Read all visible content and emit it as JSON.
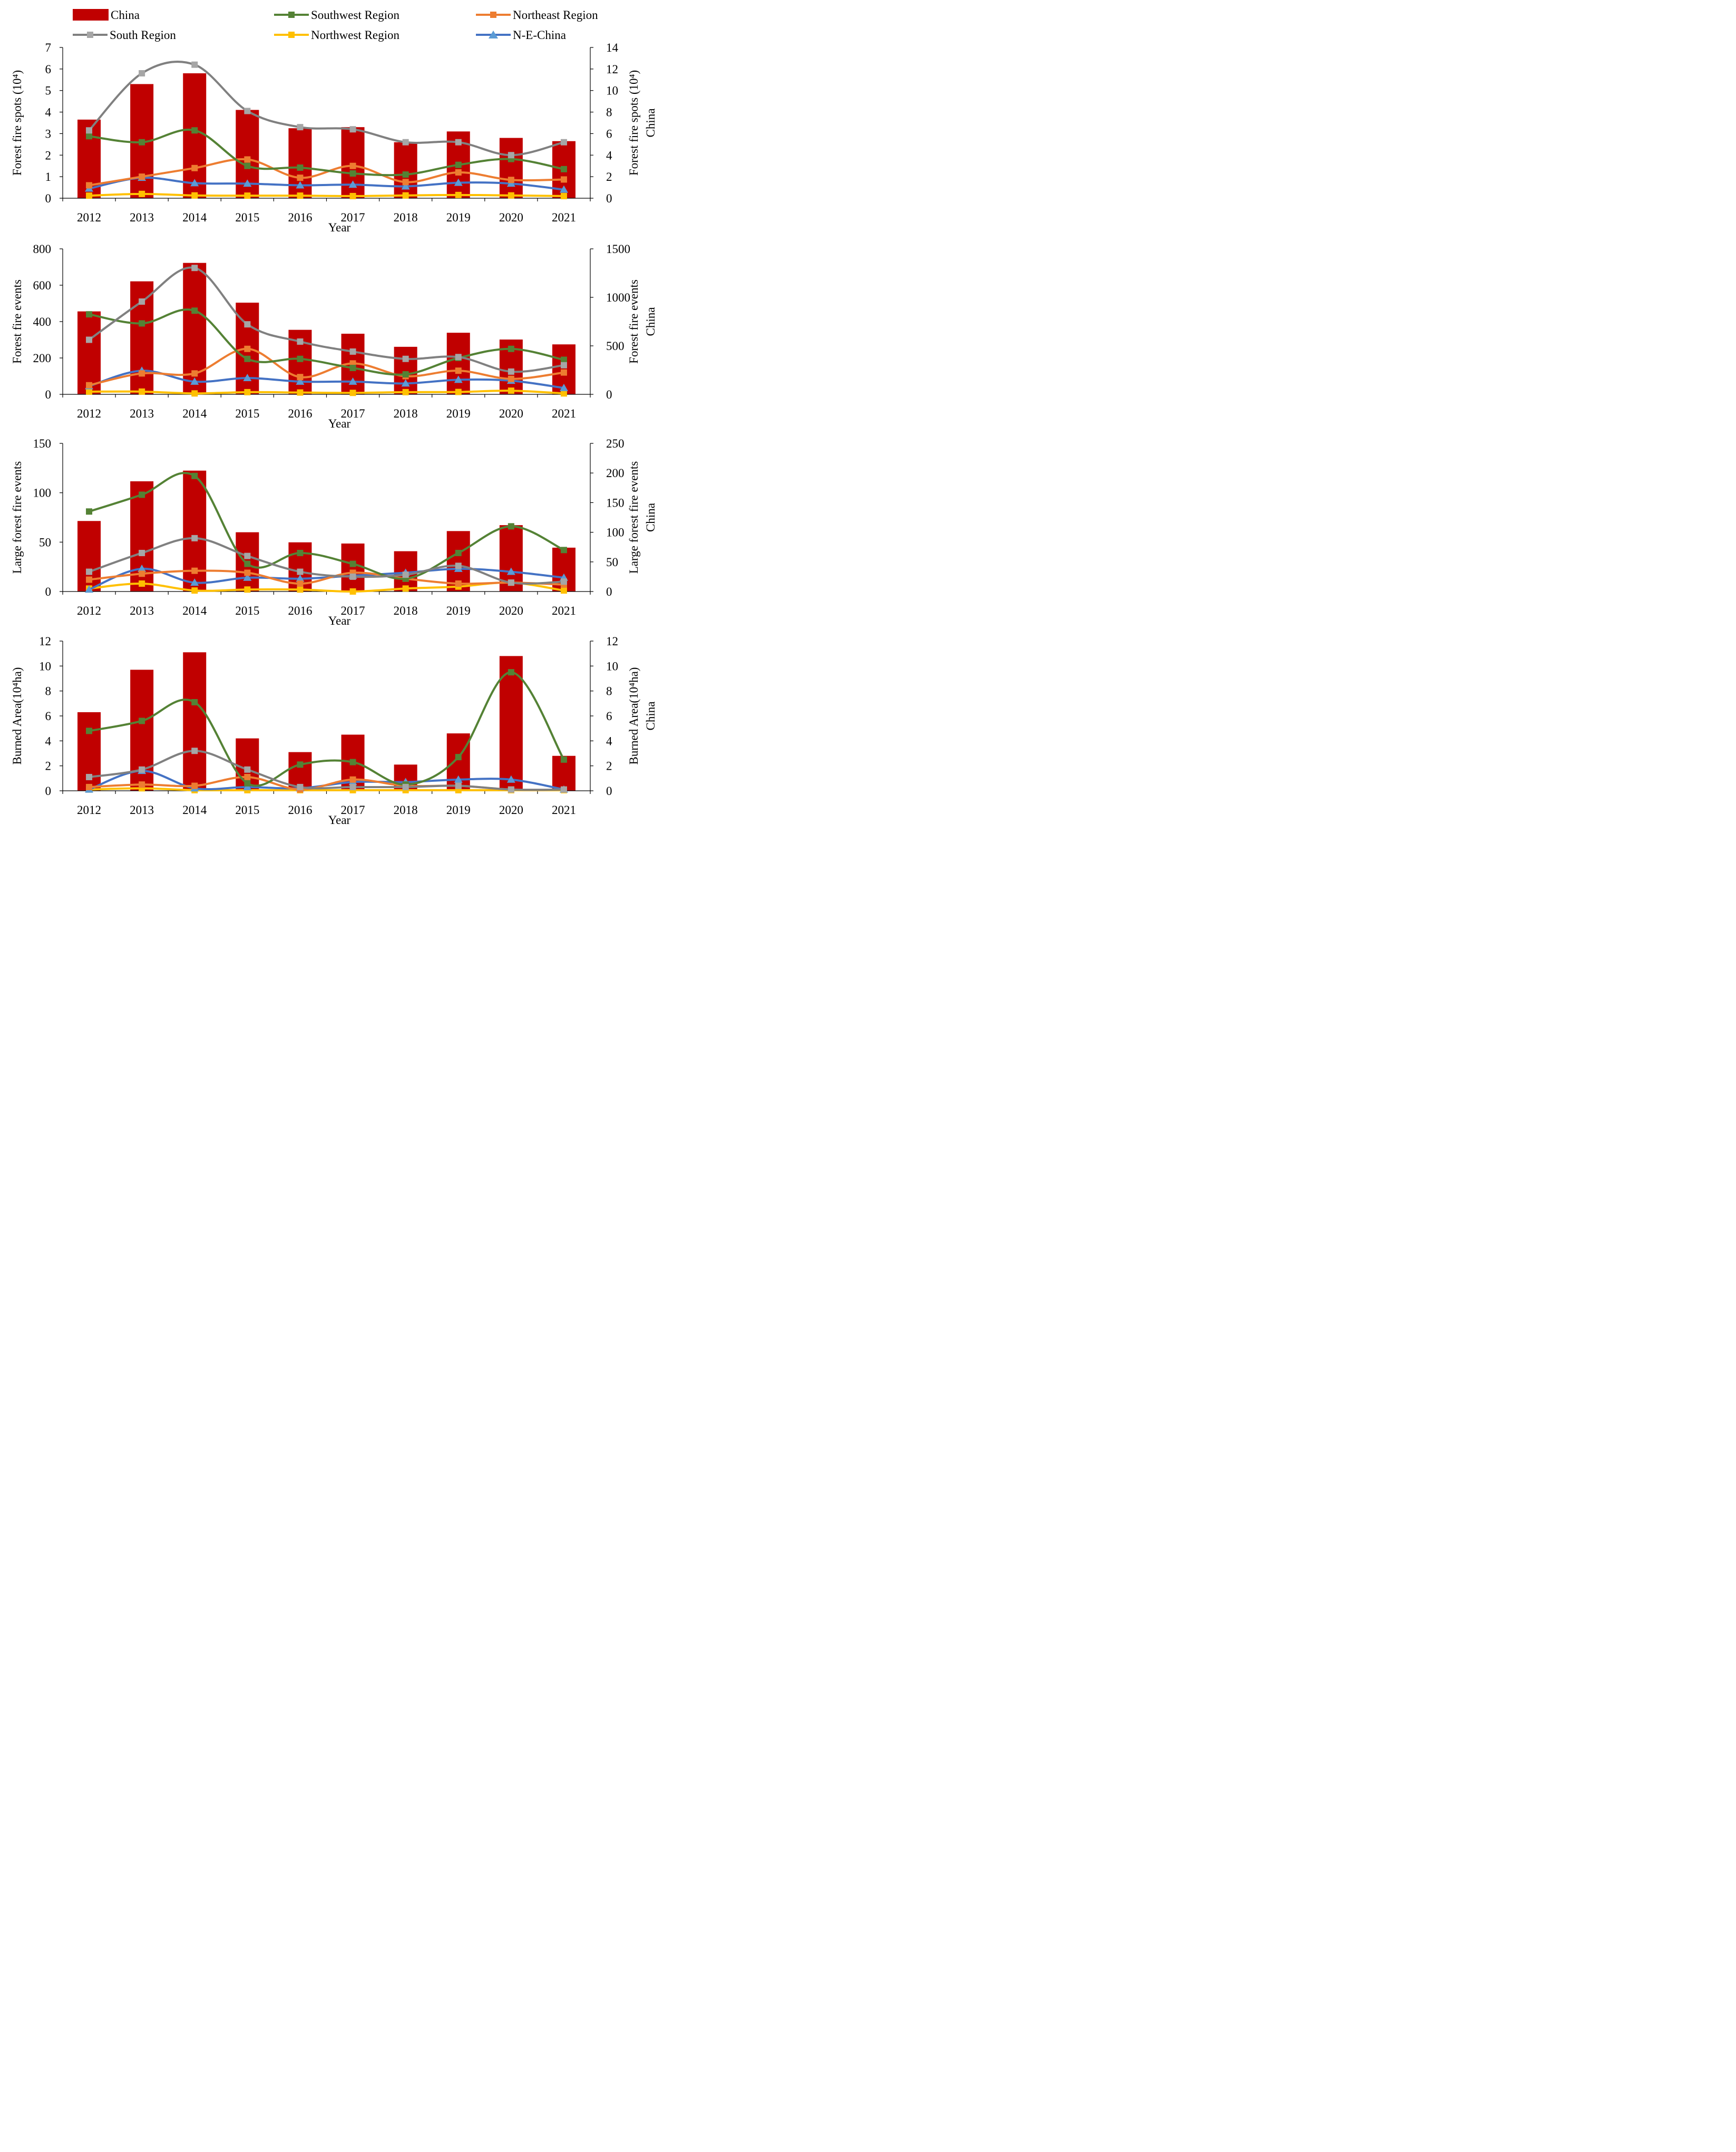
{
  "legend": [
    {
      "name": "China",
      "kind": "bar",
      "color": "#C00000"
    },
    {
      "name": "Southwest Region",
      "kind": "line",
      "marker": "square",
      "color": "#548235"
    },
    {
      "name": "Northeast Region",
      "kind": "line",
      "marker": "square",
      "color": "#ED7D31"
    },
    {
      "name": "South Region",
      "kind": "line",
      "marker": "square",
      "color": "#808080",
      "markerColor": "#A6A6A6"
    },
    {
      "name": "Northwest Region",
      "kind": "line",
      "marker": "square",
      "color": "#FFC000"
    },
    {
      "name": "N-E-China",
      "kind": "line",
      "marker": "triangle",
      "color": "#4472C4",
      "markerColor": "#5B9BD5"
    }
  ],
  "chart_data": [
    {
      "type": "bar+line",
      "title": "",
      "categories": [
        "2012",
        "2013",
        "2014",
        "2015",
        "2016",
        "2017",
        "2018",
        "2019",
        "2020",
        "2021"
      ],
      "xlabel": "Year",
      "ylabel": "Forest fire spots (10⁴)",
      "ylabel_right": [
        "Forest fire spots (10⁴)",
        "China"
      ],
      "ylim": [
        0,
        7
      ],
      "yticks": [
        0,
        1,
        2,
        3,
        4,
        5,
        6,
        7
      ],
      "ylim_right": [
        0,
        14
      ],
      "yticks_right": [
        0,
        2,
        4,
        6,
        8,
        10,
        12,
        14
      ],
      "bars": {
        "name": "China",
        "axis": "right",
        "values": [
          7.3,
          10.6,
          11.6,
          8.2,
          6.5,
          6.6,
          5.2,
          6.2,
          5.6,
          5.3
        ]
      },
      "series": [
        {
          "name": "Southwest Region",
          "values": [
            2.88,
            2.6,
            3.15,
            1.5,
            1.42,
            1.15,
            1.1,
            1.55,
            1.82,
            1.35
          ]
        },
        {
          "name": "Northeast Region",
          "values": [
            0.6,
            1.0,
            1.4,
            1.8,
            0.95,
            1.5,
            0.75,
            1.2,
            0.85,
            0.87
          ]
        },
        {
          "name": "South Region",
          "values": [
            3.15,
            5.8,
            6.2,
            4.05,
            3.3,
            3.2,
            2.6,
            2.6,
            2.0,
            2.6
          ]
        },
        {
          "name": "Northwest Region",
          "values": [
            0.12,
            0.2,
            0.13,
            0.12,
            0.12,
            0.1,
            0.13,
            0.15,
            0.13,
            0.1
          ]
        },
        {
          "name": "N-E-China",
          "values": [
            0.45,
            0.95,
            0.7,
            0.68,
            0.6,
            0.63,
            0.55,
            0.72,
            0.68,
            0.4
          ]
        }
      ]
    },
    {
      "type": "bar+line",
      "title": "",
      "categories": [
        "2012",
        "2013",
        "2014",
        "2015",
        "2016",
        "2017",
        "2018",
        "2019",
        "2020",
        "2021"
      ],
      "xlabel": "Year",
      "ylabel": "Forest fire events",
      "ylabel_right": [
        "Forest fire events",
        "China"
      ],
      "ylim": [
        0,
        800
      ],
      "yticks": [
        0,
        200,
        400,
        600,
        800
      ],
      "ylim_right": [
        0,
        1500
      ],
      "yticks_right": [
        0,
        500,
        1000,
        1500
      ],
      "bars": {
        "name": "China",
        "axis": "right",
        "values": [
          855,
          1165,
          1355,
          945,
          665,
          625,
          490,
          635,
          565,
          515
        ]
      },
      "series": [
        {
          "name": "Southwest Region",
          "values": [
            440,
            390,
            460,
            195,
            195,
            145,
            110,
            200,
            250,
            190
          ]
        },
        {
          "name": "Northeast Region",
          "values": [
            50,
            115,
            115,
            250,
            95,
            170,
            100,
            130,
            85,
            120
          ]
        },
        {
          "name": "South Region",
          "values": [
            300,
            510,
            695,
            385,
            290,
            235,
            195,
            205,
            125,
            160
          ]
        },
        {
          "name": "Northwest Region",
          "values": [
            15,
            15,
            5,
            12,
            10,
            8,
            12,
            13,
            20,
            5
          ]
        },
        {
          "name": "N-E-China",
          "values": [
            45,
            130,
            70,
            90,
            70,
            70,
            60,
            80,
            75,
            35
          ]
        }
      ]
    },
    {
      "type": "bar+line",
      "title": "",
      "categories": [
        "2012",
        "2013",
        "2014",
        "2015",
        "2016",
        "2017",
        "2018",
        "2019",
        "2020",
        "2021"
      ],
      "xlabel": "Year",
      "ylabel": "Large forest fire events",
      "ylabel_right": [
        "Large forest fire events",
        "China"
      ],
      "ylim": [
        0,
        150
      ],
      "yticks": [
        0,
        50,
        100,
        150
      ],
      "ylim_right": [
        0,
        250
      ],
      "yticks_right": [
        0,
        50,
        100,
        150,
        200,
        250
      ],
      "bars": {
        "name": "China",
        "axis": "right",
        "values": [
          119,
          186,
          204,
          100,
          83,
          81,
          68,
          102,
          112,
          74
        ]
      },
      "series": [
        {
          "name": "Southwest Region",
          "values": [
            81,
            98,
            117,
            28,
            39,
            28,
            13,
            39,
            66,
            42
          ]
        },
        {
          "name": "Northeast Region",
          "values": [
            12,
            18,
            21,
            19,
            8,
            19,
            13,
            8,
            9,
            7
          ]
        },
        {
          "name": "South Region",
          "values": [
            20,
            39,
            54,
            36,
            20,
            15,
            17,
            26,
            9,
            10
          ]
        },
        {
          "name": "Northwest Region",
          "values": [
            3,
            8,
            1,
            2,
            2,
            0,
            3,
            5,
            9,
            1
          ]
        },
        {
          "name": "N-E-China",
          "values": [
            2,
            23,
            9,
            14,
            13,
            16,
            19,
            23,
            20,
            14
          ]
        }
      ]
    },
    {
      "type": "bar+line",
      "title": "",
      "categories": [
        "2012",
        "2013",
        "2014",
        "2015",
        "2016",
        "2017",
        "2018",
        "2019",
        "2020",
        "2021"
      ],
      "xlabel": "Year",
      "ylabel": "Burned Area(10⁴ha)",
      "ylabel_right": [
        "Burned Area(10⁴ha)",
        "China"
      ],
      "ylim": [
        0,
        12
      ],
      "yticks": [
        0,
        2,
        4,
        6,
        8,
        10,
        12
      ],
      "ylim_right": [
        0,
        12
      ],
      "yticks_right": [
        0,
        2,
        4,
        6,
        8,
        10,
        12
      ],
      "bars": {
        "name": "China",
        "axis": "right",
        "values": [
          6.3,
          9.7,
          11.1,
          4.2,
          3.1,
          4.5,
          2.1,
          4.6,
          10.8,
          2.8
        ]
      },
      "series": [
        {
          "name": "Southwest Region",
          "values": [
            4.8,
            5.6,
            7.1,
            0.6,
            2.1,
            2.3,
            0.5,
            2.7,
            9.5,
            2.5
          ]
        },
        {
          "name": "Northeast Region",
          "values": [
            0.3,
            0.5,
            0.4,
            1.1,
            0.1,
            0.9,
            0.4,
            0.4,
            0.1,
            0.1
          ]
        },
        {
          "name": "South Region",
          "values": [
            1.1,
            1.7,
            3.2,
            1.7,
            0.3,
            0.3,
            0.3,
            0.4,
            0.1,
            0.1
          ]
        },
        {
          "name": "Northwest Region",
          "values": [
            0.1,
            0.2,
            0.05,
            0.05,
            0.05,
            0.05,
            0.05,
            0.05,
            0.05,
            0.05
          ]
        },
        {
          "name": "N-E-China",
          "values": [
            0.1,
            1.6,
            0.2,
            0.3,
            0.2,
            0.7,
            0.7,
            0.9,
            0.9,
            0.1
          ]
        }
      ]
    }
  ]
}
